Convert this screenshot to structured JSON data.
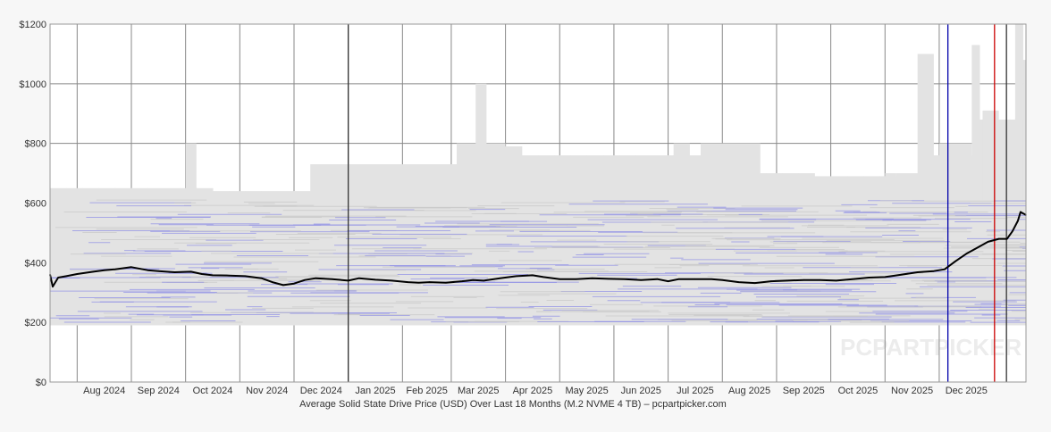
{
  "chart_data": {
    "type": "line",
    "title": "Average Solid State Drive Price (USD) Over Last 18 Months (M.2 NVME 4 TB) – pcpartpicker.com",
    "xlabel": "",
    "ylabel": "",
    "ylim": [
      0,
      1200
    ],
    "y_ticks": [
      {
        "value": 0,
        "label": "$0"
      },
      {
        "value": 200,
        "label": "$200"
      },
      {
        "value": 400,
        "label": "$400"
      },
      {
        "value": 600,
        "label": "$600"
      },
      {
        "value": 800,
        "label": "$800"
      },
      {
        "value": 1000,
        "label": "$1000"
      },
      {
        "value": 1200,
        "label": "$1200"
      }
    ],
    "x_range": [
      0,
      18
    ],
    "x_months": [
      {
        "label": "Aug 2024",
        "start": 0.5,
        "end": 1.5
      },
      {
        "label": "Sep 2024",
        "start": 1.5,
        "end": 2.5
      },
      {
        "label": "Oct 2024",
        "start": 2.5,
        "end": 3.5
      },
      {
        "label": "Nov 2024",
        "start": 3.5,
        "end": 4.5
      },
      {
        "label": "Dec 2024",
        "start": 4.5,
        "end": 5.5
      },
      {
        "label": "Jan 2025",
        "start": 5.5,
        "end": 6.5
      },
      {
        "label": "Feb 2025",
        "start": 6.5,
        "end": 7.4
      },
      {
        "label": "Mar 2025",
        "start": 7.4,
        "end": 8.4
      },
      {
        "label": "Apr 2025",
        "start": 8.4,
        "end": 9.4
      },
      {
        "label": "May 2025",
        "start": 9.4,
        "end": 10.4
      },
      {
        "label": "Jun 2025",
        "start": 10.4,
        "end": 11.4
      },
      {
        "label": "Jul 2025",
        "start": 11.4,
        "end": 12.4
      },
      {
        "label": "Aug 2025",
        "start": 12.4,
        "end": 13.4
      },
      {
        "label": "Sep 2025",
        "start": 13.4,
        "end": 14.4
      },
      {
        "label": "Oct 2025",
        "start": 14.4,
        "end": 15.4
      },
      {
        "label": "Nov 2025",
        "start": 15.4,
        "end": 16.4
      },
      {
        "label": "Dec 2025",
        "start": 16.4,
        "end": 17.4
      }
    ],
    "series": [
      {
        "color": "#000000",
        "points": [
          [
            0.0,
            360
          ],
          [
            0.05,
            320
          ],
          [
            0.15,
            350
          ],
          [
            0.3,
            355
          ],
          [
            0.5,
            362
          ],
          [
            0.8,
            370
          ],
          [
            1.0,
            375
          ],
          [
            1.2,
            378
          ],
          [
            1.5,
            385
          ],
          [
            1.8,
            375
          ],
          [
            2.0,
            372
          ],
          [
            2.3,
            368
          ],
          [
            2.6,
            370
          ],
          [
            2.8,
            362
          ],
          [
            3.0,
            358
          ],
          [
            3.3,
            357
          ],
          [
            3.6,
            355
          ],
          [
            3.9,
            348
          ],
          [
            4.1,
            335
          ],
          [
            4.3,
            325
          ],
          [
            4.5,
            330
          ],
          [
            4.7,
            342
          ],
          [
            4.9,
            348
          ],
          [
            5.2,
            345
          ],
          [
            5.5,
            340
          ],
          [
            5.7,
            348
          ],
          [
            6.0,
            343
          ],
          [
            6.3,
            340
          ],
          [
            6.6,
            335
          ],
          [
            6.8,
            333
          ],
          [
            7.0,
            335
          ],
          [
            7.3,
            333
          ],
          [
            7.6,
            338
          ],
          [
            7.8,
            342
          ],
          [
            8.0,
            340
          ],
          [
            8.3,
            348
          ],
          [
            8.6,
            355
          ],
          [
            8.9,
            358
          ],
          [
            9.1,
            352
          ],
          [
            9.4,
            345
          ],
          [
            9.7,
            345
          ],
          [
            10.0,
            348
          ],
          [
            10.3,
            346
          ],
          [
            10.6,
            345
          ],
          [
            10.9,
            342
          ],
          [
            11.2,
            345
          ],
          [
            11.4,
            338
          ],
          [
            11.6,
            345
          ],
          [
            11.9,
            345
          ],
          [
            12.2,
            345
          ],
          [
            12.4,
            342
          ],
          [
            12.7,
            335
          ],
          [
            13.0,
            332
          ],
          [
            13.3,
            338
          ],
          [
            13.6,
            340
          ],
          [
            13.9,
            342
          ],
          [
            14.2,
            342
          ],
          [
            14.5,
            340
          ],
          [
            14.8,
            345
          ],
          [
            15.1,
            350
          ],
          [
            15.4,
            352
          ],
          [
            15.7,
            360
          ],
          [
            16.0,
            368
          ],
          [
            16.3,
            372
          ],
          [
            16.5,
            378
          ],
          [
            16.7,
            405
          ],
          [
            16.9,
            430
          ],
          [
            17.1,
            450
          ],
          [
            17.3,
            470
          ],
          [
            17.5,
            480
          ],
          [
            17.65,
            480
          ],
          [
            17.75,
            505
          ],
          [
            17.85,
            540
          ],
          [
            17.9,
            570
          ],
          [
            18.0,
            560
          ]
        ]
      }
    ],
    "reference_lines": [
      {
        "x": 5.5,
        "color": "#333333"
      },
      {
        "x": 16.56,
        "color": "#0000aa"
      },
      {
        "x": 17.42,
        "color": "#cc0000"
      },
      {
        "x": 17.64,
        "color": "#333333"
      }
    ],
    "grid": true,
    "watermark": "PCPARTPICKER"
  }
}
